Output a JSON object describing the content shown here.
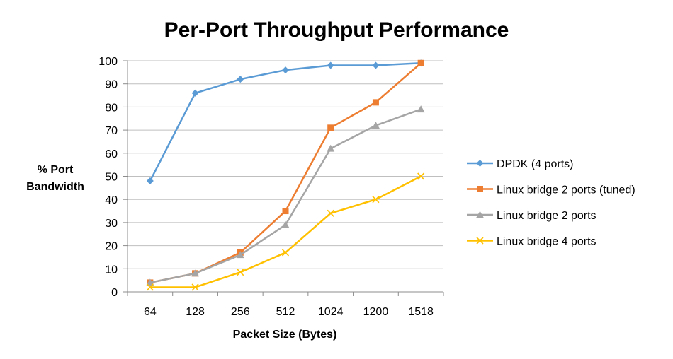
{
  "chart_data": {
    "type": "line",
    "title": "Per-Port Throughput Performance",
    "xlabel": "Packet Size (Bytes)",
    "ylabel_lines": [
      "% Port",
      "Bandwidth"
    ],
    "categories": [
      "64",
      "128",
      "256",
      "512",
      "1024",
      "1200",
      "1518"
    ],
    "ylim": [
      0,
      100
    ],
    "ytick_step": 10,
    "grid": true,
    "legend_position": "right",
    "series": [
      {
        "name": "DPDK (4 ports)",
        "color": "#5b9bd5",
        "marker": "diamond",
        "values": [
          48,
          86,
          92,
          96,
          98,
          98,
          99
        ]
      },
      {
        "name": "Linux bridge 2 ports (tuned)",
        "color": "#ed7d31",
        "marker": "square",
        "values": [
          4,
          8,
          17,
          35,
          71,
          82,
          99
        ]
      },
      {
        "name": "Linux bridge 2 ports",
        "color": "#a5a5a5",
        "marker": "triangle",
        "values": [
          4,
          8,
          16,
          29,
          62,
          72,
          79
        ]
      },
      {
        "name": "Linux bridge 4 ports",
        "color": "#ffc000",
        "marker": "x",
        "values": [
          2,
          2,
          8.5,
          17,
          34,
          40,
          50
        ]
      }
    ]
  }
}
